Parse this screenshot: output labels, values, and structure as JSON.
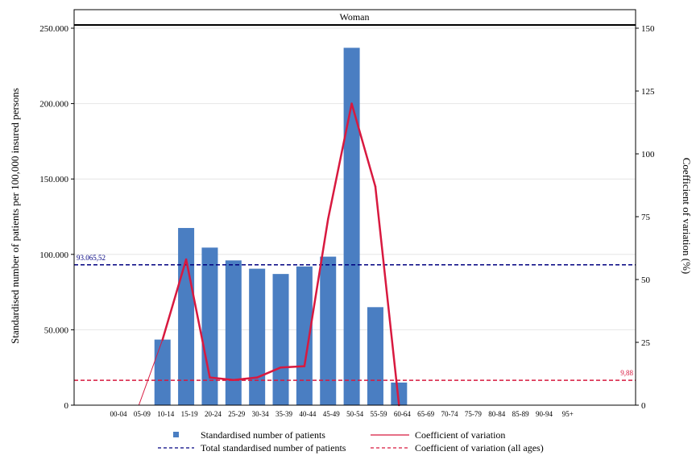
{
  "colors": {
    "bar": "#4a7ec2",
    "cv_line": "#d8193f",
    "total_ref": "#000080",
    "cv_ref": "#d8193f",
    "gridline": "#e6e6e6"
  },
  "chart_data": {
    "type": "bar",
    "panel_title": "Woman",
    "categories": [
      "00-04",
      "05-09",
      "10-14",
      "15-19",
      "20-24",
      "25-29",
      "30-34",
      "35-39",
      "40-44",
      "45-49",
      "50-54",
      "55-59",
      "60-64",
      "65-69",
      "70-74",
      "75-79",
      "80-84",
      "85-89",
      "90-94",
      "95+"
    ],
    "series": [
      {
        "name": "Standardised number of patients",
        "type": "bar",
        "axis": "left",
        "values": [
          0,
          0,
          43500,
          117500,
          104500,
          96000,
          90500,
          87000,
          92000,
          98500,
          237000,
          65000,
          15000,
          0,
          0,
          0,
          0,
          0,
          0,
          0
        ]
      },
      {
        "name": "Coefficient of variation",
        "type": "line",
        "axis": "right",
        "values": [
          null,
          0,
          26,
          58,
          11,
          10,
          11,
          15,
          15.5,
          74,
          120,
          87,
          0,
          null,
          null,
          null,
          null,
          null,
          null,
          null
        ]
      }
    ],
    "reference_lines": [
      {
        "name": "Total standardised number of patients",
        "axis": "left",
        "value": 93065.52,
        "label": "93.065,52"
      },
      {
        "name": "Coefficient of variation (all ages)",
        "axis": "right",
        "value": 9.88,
        "label": "9,88"
      }
    ],
    "ylabel": "Standardised number of patients per 100,000 insured persons",
    "y2label": "Coefficient of variation (%)",
    "ylim": [
      0,
      250000
    ],
    "y2lim": [
      0,
      150
    ],
    "yticks": [
      0,
      50000,
      100000,
      150000,
      200000,
      250000
    ],
    "ytick_labels": [
      "0",
      "50.000",
      "100.000",
      "150.000",
      "200.000",
      "250.000"
    ],
    "y2ticks": [
      0,
      25,
      50,
      75,
      100,
      125,
      150
    ],
    "y2tick_labels": [
      "0",
      "25",
      "50",
      "75",
      "100",
      "125",
      "150"
    ],
    "grid": true,
    "legend_placement": "bottom"
  },
  "legend": {
    "items": [
      {
        "label": "Standardised number of patients",
        "symbol": "square"
      },
      {
        "label": "Coefficient of variation",
        "symbol": "solid-line"
      },
      {
        "label": "Total standardised number of patients",
        "symbol": "dashed-line"
      },
      {
        "label": "Coefficient of variation (all ages)",
        "symbol": "dashed-line"
      }
    ]
  }
}
